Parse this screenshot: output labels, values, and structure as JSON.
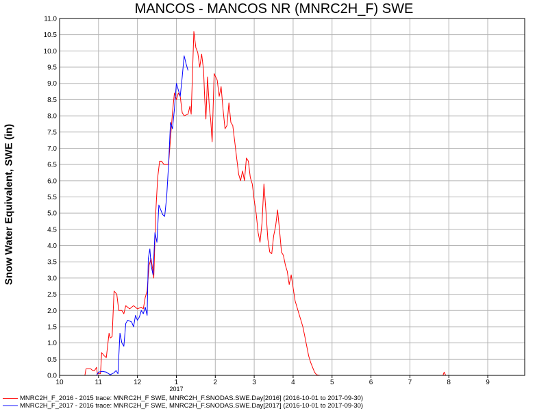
{
  "chart_data": {
    "type": "line",
    "title": "MANCOS - MANCOS NR (MNRC2H_F) SWE",
    "xlabel": "",
    "ylabel": "Snow Water Equivalent, SWE (in)",
    "xlim": [
      10,
      10.95
    ],
    "ylim": [
      0,
      11
    ],
    "x_ticks": [
      10,
      11,
      12,
      1,
      2,
      3,
      4,
      5,
      6,
      7,
      8,
      9
    ],
    "x_year_label": "2017",
    "y_ticks": [
      "0.0",
      "0.5",
      "1.0",
      "1.5",
      "2.0",
      "2.5",
      "3.0",
      "3.5",
      "4.0",
      "4.5",
      "5.0",
      "5.5",
      "6.0",
      "6.5",
      "7.0",
      "7.5",
      "8.0",
      "8.5",
      "9.0",
      "9.5",
      "10.0",
      "10.5",
      "11.0"
    ],
    "grid": true,
    "legend_position": "bottom-left",
    "series": [
      {
        "name": "MNRC2H_F_2016 - 2015 trace: MNRC2H_F SWE, MNRC2H_F.SNODAS.SWE.Day[2016] (2016-10-01 to 2017-09-30)",
        "color": "#ff0000",
        "points": [
          [
            10.65,
            0.0
          ],
          [
            10.68,
            0.2
          ],
          [
            10.8,
            0.2
          ],
          [
            10.85,
            0.15
          ],
          [
            10.9,
            0.15
          ],
          [
            10.95,
            0.25
          ],
          [
            10.97,
            0.05
          ],
          [
            11.05,
            0.05
          ],
          [
            11.08,
            0.7
          ],
          [
            11.15,
            0.6
          ],
          [
            11.2,
            0.55
          ],
          [
            11.27,
            1.3
          ],
          [
            11.3,
            1.15
          ],
          [
            11.35,
            1.2
          ],
          [
            11.4,
            2.6
          ],
          [
            11.47,
            2.5
          ],
          [
            11.52,
            2.0
          ],
          [
            11.6,
            2.0
          ],
          [
            11.65,
            1.9
          ],
          [
            11.7,
            2.15
          ],
          [
            11.8,
            2.05
          ],
          [
            11.9,
            2.15
          ],
          [
            12.0,
            2.05
          ],
          [
            12.1,
            2.1
          ],
          [
            12.15,
            2.05
          ],
          [
            12.2,
            2.4
          ],
          [
            12.25,
            2.6
          ],
          [
            12.3,
            3.4
          ],
          [
            12.35,
            3.6
          ],
          [
            12.4,
            3.2
          ],
          [
            12.42,
            3.0
          ],
          [
            12.47,
            5.0
          ],
          [
            12.52,
            6.1
          ],
          [
            12.57,
            6.6
          ],
          [
            12.62,
            6.6
          ],
          [
            12.68,
            6.5
          ],
          [
            12.8,
            6.5
          ],
          [
            12.85,
            7.3
          ],
          [
            12.9,
            8.1
          ],
          [
            12.95,
            8.7
          ],
          [
            13.0,
            8.5
          ],
          [
            13.05,
            8.7
          ],
          [
            13.1,
            8.6
          ],
          [
            13.15,
            8.1
          ],
          [
            13.2,
            8.0
          ],
          [
            13.3,
            8.05
          ],
          [
            13.35,
            8.3
          ],
          [
            13.38,
            8.05
          ],
          [
            13.45,
            10.6
          ],
          [
            13.5,
            10.1
          ],
          [
            13.55,
            9.95
          ],
          [
            13.6,
            9.5
          ],
          [
            13.65,
            9.9
          ],
          [
            13.7,
            9.4
          ],
          [
            13.73,
            8.5
          ],
          [
            13.76,
            7.9
          ],
          [
            13.8,
            9.2
          ],
          [
            13.85,
            8.2
          ],
          [
            13.88,
            7.9
          ],
          [
            13.92,
            7.2
          ],
          [
            13.97,
            9.3
          ],
          [
            14.05,
            9.1
          ],
          [
            14.1,
            8.6
          ],
          [
            14.15,
            8.9
          ],
          [
            14.2,
            8.2
          ],
          [
            14.25,
            7.6
          ],
          [
            14.3,
            7.7
          ],
          [
            14.35,
            8.4
          ],
          [
            14.4,
            7.8
          ],
          [
            14.45,
            7.7
          ],
          [
            14.5,
            7.2
          ],
          [
            14.55,
            6.7
          ],
          [
            14.6,
            6.2
          ],
          [
            14.65,
            6.0
          ],
          [
            14.7,
            6.3
          ],
          [
            14.75,
            6.0
          ],
          [
            14.8,
            6.7
          ],
          [
            14.85,
            6.6
          ],
          [
            14.9,
            6.1
          ],
          [
            14.95,
            5.9
          ],
          [
            15.0,
            5.4
          ],
          [
            15.05,
            5.0
          ],
          [
            15.1,
            4.4
          ],
          [
            15.15,
            4.1
          ],
          [
            15.2,
            4.7
          ],
          [
            15.25,
            5.9
          ],
          [
            15.3,
            5.1
          ],
          [
            15.35,
            4.2
          ],
          [
            15.4,
            3.8
          ],
          [
            15.45,
            3.75
          ],
          [
            15.5,
            4.3
          ],
          [
            15.55,
            4.6
          ],
          [
            15.6,
            5.1
          ],
          [
            15.65,
            4.5
          ],
          [
            15.7,
            3.8
          ],
          [
            15.75,
            3.7
          ],
          [
            15.8,
            3.4
          ],
          [
            15.85,
            3.2
          ],
          [
            15.9,
            2.8
          ],
          [
            15.95,
            3.1
          ],
          [
            16.0,
            2.7
          ],
          [
            16.05,
            2.3
          ],
          [
            16.1,
            2.1
          ],
          [
            16.15,
            1.9
          ],
          [
            16.2,
            1.7
          ],
          [
            16.25,
            1.5
          ],
          [
            16.3,
            1.2
          ],
          [
            16.35,
            0.9
          ],
          [
            16.4,
            0.6
          ],
          [
            16.45,
            0.4
          ],
          [
            16.5,
            0.25
          ],
          [
            16.55,
            0.1
          ],
          [
            16.6,
            0.02
          ],
          [
            16.7,
            0.0
          ],
          [
            16.9,
            0.0
          ],
          [
            19.5,
            0.0
          ],
          [
            19.85,
            0.0
          ],
          [
            19.88,
            0.1
          ],
          [
            19.92,
            0.0
          ]
        ]
      },
      {
        "name": "MNRC2H_F_2017 - 2016 trace: MNRC2H_F SWE, MNRC2H_F.SNODAS.SWE.Day[2017] (2016-10-01 to 2017-09-30)",
        "color": "#0000ff",
        "points": [
          [
            10.95,
            0.0
          ],
          [
            11.0,
            0.1
          ],
          [
            11.1,
            0.12
          ],
          [
            11.2,
            0.1
          ],
          [
            11.3,
            0.02
          ],
          [
            11.4,
            0.08
          ],
          [
            11.45,
            0.15
          ],
          [
            11.5,
            0.05
          ],
          [
            11.55,
            1.3
          ],
          [
            11.6,
            1.0
          ],
          [
            11.65,
            0.9
          ],
          [
            11.7,
            1.6
          ],
          [
            11.75,
            1.7
          ],
          [
            11.85,
            1.65
          ],
          [
            11.9,
            1.5
          ],
          [
            11.95,
            1.85
          ],
          [
            12.0,
            1.7
          ],
          [
            12.05,
            1.8
          ],
          [
            12.1,
            2.0
          ],
          [
            12.15,
            1.9
          ],
          [
            12.2,
            2.1
          ],
          [
            12.25,
            1.85
          ],
          [
            12.28,
            3.6
          ],
          [
            12.32,
            3.9
          ],
          [
            12.35,
            3.4
          ],
          [
            12.4,
            3.1
          ],
          [
            12.45,
            4.4
          ],
          [
            12.5,
            4.1
          ],
          [
            12.55,
            5.25
          ],
          [
            12.6,
            5.1
          ],
          [
            12.65,
            4.95
          ],
          [
            12.7,
            4.9
          ],
          [
            12.75,
            5.5
          ],
          [
            12.8,
            6.5
          ],
          [
            12.85,
            7.8
          ],
          [
            12.9,
            7.6
          ],
          [
            12.95,
            8.2
          ],
          [
            13.0,
            9.0
          ],
          [
            13.05,
            8.8
          ],
          [
            13.1,
            8.6
          ],
          [
            13.15,
            9.2
          ],
          [
            13.2,
            9.85
          ],
          [
            13.25,
            9.6
          ],
          [
            13.3,
            9.4
          ]
        ]
      }
    ]
  }
}
